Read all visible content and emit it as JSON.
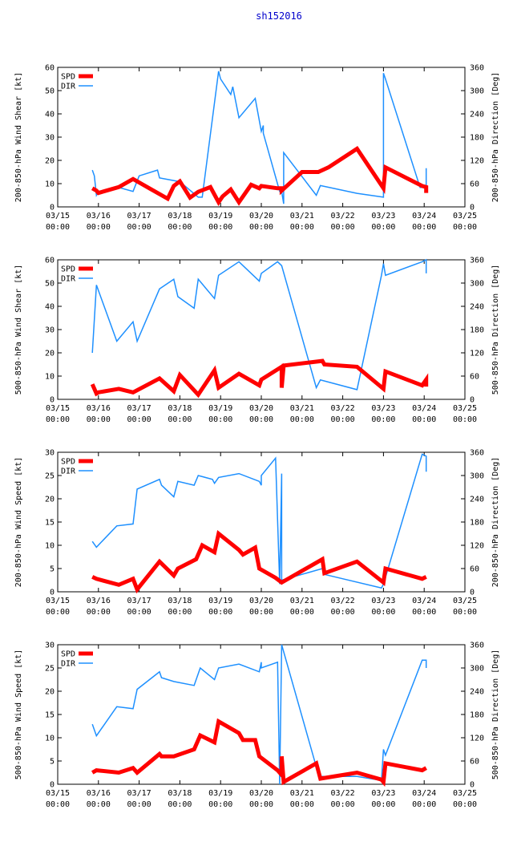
{
  "page_title": "sh152016",
  "colors": {
    "spd": "#ff0000",
    "dir": "#1e90ff",
    "title": "#0000cc",
    "axis": "#000000"
  },
  "x_ticks": [
    {
      "day": 15,
      "label": "03/15",
      "time": "00:00"
    },
    {
      "day": 16,
      "label": "03/16",
      "time": "00:00"
    },
    {
      "day": 17,
      "label": "03/17",
      "time": "00:00"
    },
    {
      "day": 18,
      "label": "03/18",
      "time": "00:00"
    },
    {
      "day": 19,
      "label": "03/19",
      "time": "00:00"
    },
    {
      "day": 20,
      "label": "03/20",
      "time": "00:00"
    },
    {
      "day": 21,
      "label": "03/21",
      "time": "00:00"
    },
    {
      "day": 22,
      "label": "03/22",
      "time": "00:00"
    },
    {
      "day": 23,
      "label": "03/23",
      "time": "00:00"
    },
    {
      "day": 24,
      "label": "03/24",
      "time": "00:00"
    },
    {
      "day": 25,
      "label": "03/25",
      "time": "00:00"
    }
  ],
  "chart_data": [
    {
      "type": "line",
      "ylabel": "200-850-hPa Wind Shear [kt]",
      "y2label": "200-850-hPa Direction [Deg]",
      "xlim": [
        15,
        25
      ],
      "ylim": [
        0,
        60
      ],
      "y_ticks": [
        0,
        10,
        20,
        30,
        40,
        50,
        60
      ],
      "y2lim": [
        0,
        360
      ],
      "y2_ticks": [
        0,
        60,
        120,
        180,
        240,
        300,
        360
      ],
      "legend": "top-left",
      "series": [
        {
          "name": "SPD",
          "axis": "left",
          "x": [
            15.85,
            15.95,
            16.0,
            16.5,
            16.85,
            17.25,
            17.7,
            17.85,
            18.0,
            18.25,
            18.45,
            18.75,
            18.95,
            19.05,
            19.25,
            19.45,
            19.75,
            19.95,
            20.0,
            20.4,
            20.5,
            20.5,
            21.0,
            21.3,
            21.4,
            21.65,
            22.35,
            23.0,
            23.05,
            23.95,
            24.05,
            24.05
          ],
          "values": [
            8,
            7,
            6,
            8.5,
            12,
            8,
            3.5,
            9,
            11,
            4,
            6.5,
            8.5,
            2,
            4.5,
            7.5,
            2,
            9.5,
            8,
            9,
            8,
            8,
            7,
            15,
            15,
            15,
            17,
            25,
            8,
            17,
            9,
            8.5,
            6
          ]
        },
        {
          "name": "DIR",
          "axis": "right",
          "x": [
            15.85,
            15.9,
            15.95,
            16.0,
            16.5,
            16.85,
            17.0,
            17.45,
            17.5,
            18.0,
            18.45,
            18.55,
            18.95,
            19.0,
            19.25,
            19.3,
            19.45,
            19.85,
            20.0,
            20.05,
            20.05,
            20.45,
            20.5,
            20.55,
            20.55,
            21.35,
            21.45,
            22.35,
            23.0,
            23.0,
            23.05,
            23.9,
            24.05,
            24.05
          ],
          "values": [
            95,
            80,
            30,
            40,
            50,
            40,
            80,
            95,
            75,
            65,
            25,
            25,
            350,
            330,
            290,
            310,
            230,
            280,
            195,
            210,
            190,
            40,
            40,
            8,
            140,
            30,
            55,
            35,
            25,
            345,
            330,
            50,
            50,
            100
          ]
        }
      ]
    },
    {
      "type": "line",
      "ylabel": "500-850-hPa Wind Shear [kt]",
      "y2label": "500-850-hPa Direction [Deg]",
      "xlim": [
        15,
        25
      ],
      "ylim": [
        0,
        60
      ],
      "y_ticks": [
        0,
        10,
        20,
        30,
        40,
        50,
        60
      ],
      "y2lim": [
        0,
        360
      ],
      "y2_ticks": [
        0,
        60,
        120,
        180,
        240,
        300,
        360
      ],
      "legend": "top-left",
      "series": [
        {
          "name": "SPD",
          "axis": "left",
          "x": [
            15.85,
            15.95,
            16.0,
            16.5,
            16.85,
            17.5,
            17.85,
            18.0,
            18.45,
            18.85,
            18.95,
            19.45,
            19.95,
            20.0,
            20.5,
            20.5,
            20.55,
            21.5,
            21.55,
            22.35,
            23.0,
            23.05,
            23.95,
            24.05,
            24.05
          ],
          "values": [
            6.5,
            2.5,
            3,
            4.5,
            3,
            9,
            3.5,
            10.5,
            2,
            12.5,
            5,
            11,
            6,
            8.5,
            14,
            5,
            14.5,
            16.5,
            15,
            14,
            4.5,
            12,
            6,
            8.5,
            5.5
          ]
        },
        {
          "name": "DIR",
          "axis": "right",
          "x": [
            15.85,
            15.95,
            16.45,
            16.85,
            16.95,
            17.5,
            17.85,
            17.95,
            18.35,
            18.45,
            18.85,
            18.95,
            19.45,
            19.95,
            20.0,
            20.4,
            20.5,
            21.35,
            21.45,
            22.35,
            22.95,
            23.0,
            23.05,
            23.95,
            24.05,
            24.05
          ],
          "values": [
            120,
            295,
            150,
            200,
            150,
            285,
            310,
            265,
            235,
            310,
            260,
            320,
            355,
            305,
            325,
            355,
            345,
            30,
            50,
            25,
            320,
            350,
            320,
            355,
            360,
            325
          ]
        }
      ]
    },
    {
      "type": "line",
      "ylabel": "200-850-hPa Wind Speed [kt]",
      "y2label": "200-850-hPa Direction [Deg]",
      "xlim": [
        15,
        25
      ],
      "ylim": [
        0,
        30
      ],
      "y_ticks": [
        0,
        5,
        10,
        15,
        20,
        25,
        30
      ],
      "y2lim": [
        0,
        360
      ],
      "y2_ticks": [
        0,
        60,
        120,
        180,
        240,
        300,
        360
      ],
      "legend": "top-left",
      "series": [
        {
          "name": "SPD",
          "axis": "left",
          "x": [
            15.85,
            15.95,
            16.5,
            16.85,
            16.95,
            17.5,
            17.85,
            17.95,
            18.4,
            18.55,
            18.85,
            18.95,
            19.45,
            19.55,
            19.85,
            19.95,
            20.35,
            20.5,
            21.5,
            21.55,
            22.35,
            23.0,
            23.05,
            23.95,
            24.05
          ],
          "values": [
            3.2,
            2.8,
            1.5,
            2.8,
            0.5,
            6.5,
            3.5,
            5,
            7,
            10,
            8.5,
            12.5,
            9,
            8,
            9.5,
            5,
            3,
            2,
            7,
            4,
            6.5,
            2,
            5,
            2.8,
            3.2
          ]
        },
        {
          "name": "DIR",
          "axis": "right",
          "x": [
            15.85,
            15.95,
            16.45,
            16.85,
            16.95,
            17.5,
            17.55,
            17.85,
            17.95,
            18.35,
            18.45,
            18.8,
            18.85,
            18.95,
            19.45,
            19.95,
            20.0,
            20.0,
            20.35,
            20.45,
            20.5,
            20.5,
            21.5,
            21.55,
            22.95,
            23.0,
            23.95,
            24.05,
            24.05
          ],
          "values": [
            130,
            115,
            170,
            175,
            265,
            290,
            275,
            245,
            285,
            275,
            300,
            290,
            280,
            295,
            305,
            285,
            275,
            300,
            345,
            20,
            305,
            30,
            60,
            45,
            10,
            20,
            355,
            350,
            310
          ]
        }
      ]
    },
    {
      "type": "line",
      "ylabel": "500-850-hPa Wind Speed [kt]",
      "y2label": "500-850-hPa Direction [Deg]",
      "xlim": [
        15,
        25
      ],
      "ylim": [
        0,
        30
      ],
      "y_ticks": [
        0,
        5,
        10,
        15,
        20,
        25,
        30
      ],
      "y2lim": [
        0,
        360
      ],
      "y2_ticks": [
        0,
        60,
        120,
        180,
        240,
        300,
        360
      ],
      "legend": "top-left",
      "series": [
        {
          "name": "SPD",
          "axis": "left",
          "x": [
            15.85,
            15.95,
            16.5,
            16.85,
            16.95,
            17.5,
            17.55,
            17.85,
            18.35,
            18.5,
            18.85,
            18.95,
            19.45,
            19.55,
            19.85,
            19.95,
            20.4,
            20.5,
            20.5,
            20.55,
            21.35,
            21.45,
            22.35,
            22.95,
            23.0,
            23.05,
            23.95,
            24.05
          ],
          "values": [
            2.5,
            3,
            2.5,
            3.5,
            2.5,
            6.5,
            6,
            6,
            7.5,
            10.5,
            9,
            13.5,
            11,
            9.5,
            9.5,
            6,
            3,
            2,
            6,
            0.5,
            4.5,
            1.2,
            2.5,
            1,
            0.5,
            4.5,
            3,
            3.5
          ]
        },
        {
          "name": "DIR",
          "axis": "right",
          "x": [
            15.85,
            15.95,
            16.45,
            16.85,
            16.95,
            17.5,
            17.55,
            17.85,
            18.35,
            18.5,
            18.85,
            18.95,
            19.45,
            19.95,
            20.0,
            20.0,
            20.4,
            20.45,
            20.5,
            21.35,
            21.45,
            22.35,
            22.95,
            23.0,
            23.05,
            23.95,
            24.05,
            24.05
          ],
          "values": [
            155,
            125,
            200,
            195,
            245,
            290,
            275,
            265,
            255,
            300,
            270,
            300,
            310,
            290,
            315,
            300,
            315,
            0,
            360,
            45,
            20,
            20,
            10,
            90,
            75,
            320,
            320,
            300
          ]
        }
      ]
    }
  ]
}
